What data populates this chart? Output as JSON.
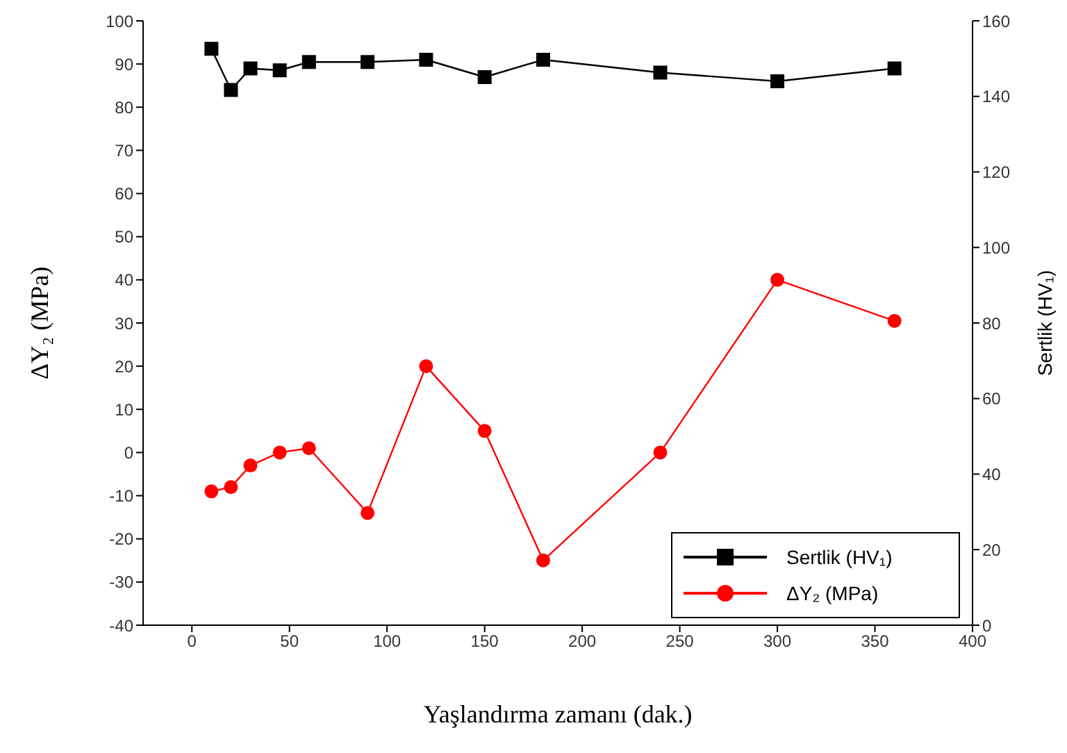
{
  "chart_data": {
    "type": "line",
    "xlabel": "Yaşlandırma zamanı (dak.)",
    "ylabel": "ΔY₂ (MPa)",
    "y2label": "Sertlik (HV₁)",
    "x": [
      10,
      20,
      30,
      45,
      60,
      90,
      120,
      150,
      180,
      240,
      300,
      360
    ],
    "xlim": [
      -25,
      400
    ],
    "xticks": [
      0,
      50,
      100,
      150,
      200,
      250,
      300,
      350,
      400
    ],
    "ylim": [
      -40,
      100
    ],
    "yticks": [
      -40,
      -30,
      -20,
      -10,
      0,
      10,
      20,
      30,
      40,
      50,
      60,
      70,
      80,
      90,
      100
    ],
    "y2lim": [
      0,
      160
    ],
    "y2ticks": [
      0,
      20,
      40,
      60,
      80,
      100,
      120,
      140,
      160
    ],
    "series": [
      {
        "name": "Sertlik (HV₁)",
        "color": "#000000",
        "axis": "y2",
        "marker": "square",
        "values": [
          152.6,
          141.7,
          147.4,
          146.9,
          149.1,
          149.1,
          149.7,
          145.1,
          149.7,
          146.3,
          144,
          147.4
        ]
      },
      {
        "name": "ΔY₂ (MPa)",
        "color": "#ff0000",
        "marker": "circle",
        "values": [
          -9,
          -8,
          -3,
          0,
          1,
          -14,
          20,
          5,
          -25,
          0,
          40,
          30.5
        ]
      }
    ],
    "legend": "bottom right",
    "grid": false
  }
}
